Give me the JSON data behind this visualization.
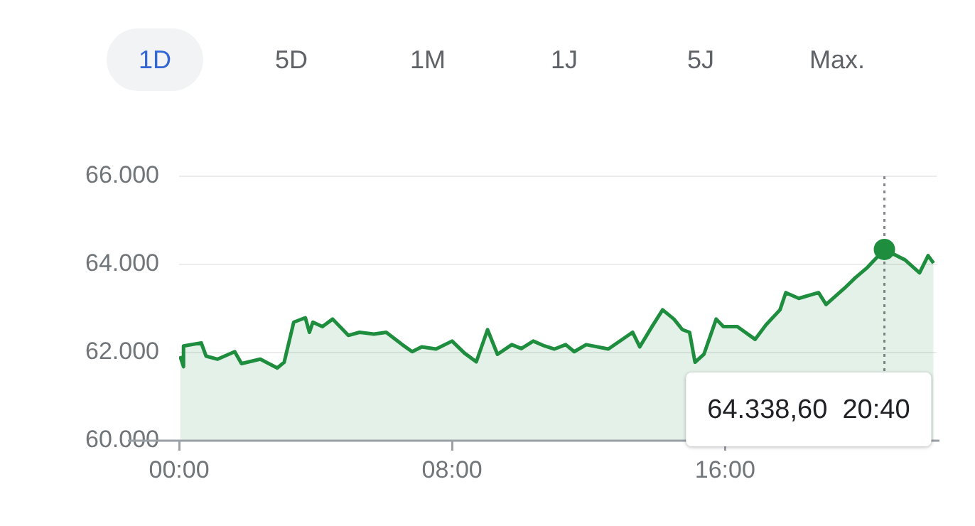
{
  "chart_data": {
    "type": "area",
    "x": [
      0.03,
      0.13,
      0.13,
      0.65,
      0.79,
      1.13,
      1.63,
      1.83,
      2.38,
      2.88,
      3.08,
      3.36,
      3.7,
      3.82,
      3.92,
      4.2,
      4.5,
      4.96,
      5.29,
      5.71,
      6.07,
      6.54,
      6.83,
      7.11,
      7.53,
      8.0,
      8.36,
      8.71,
      9.04,
      9.33,
      9.75,
      10.03,
      10.38,
      10.71,
      11.0,
      11.33,
      11.58,
      11.93,
      12.58,
      13.29,
      13.5,
      13.86,
      14.17,
      14.5,
      14.75,
      14.96,
      15.12,
      15.38,
      15.74,
      15.95,
      16.36,
      16.88,
      17.2,
      17.61,
      17.78,
      18.16,
      18.74,
      18.96,
      19.5,
      19.82,
      20.17,
      20.67,
      21.28,
      21.7,
      21.95,
      22.11
    ],
    "series": [
      {
        "color": "#1e8e3e",
        "values": [
          61920,
          61680,
          62150,
          62220,
          61920,
          61850,
          62020,
          61750,
          61850,
          61650,
          61780,
          62690,
          62790,
          62460,
          62690,
          62590,
          62760,
          62390,
          62460,
          62420,
          62460,
          62180,
          62020,
          62130,
          62080,
          62260,
          61990,
          61790,
          62520,
          61960,
          62180,
          62090,
          62260,
          62150,
          62080,
          62180,
          62020,
          62180,
          62080,
          62460,
          62130,
          62590,
          62970,
          62760,
          62520,
          62460,
          61780,
          61960,
          62760,
          62590,
          62590,
          62300,
          62630,
          62970,
          63360,
          63230,
          63360,
          63090,
          63460,
          63700,
          63930,
          64340,
          64100,
          63810,
          64200,
          64030
        ]
      },
      {
        "type": "scatter",
        "color": "#1e8e3e",
        "x": [
          20.67
        ],
        "values": [
          64340
        ]
      }
    ],
    "xlim": [
      0,
      22.2
    ],
    "xticks": [
      {
        "value": 0,
        "label": "00:00"
      },
      {
        "value": 8,
        "label": "08:00"
      },
      {
        "value": 16,
        "label": "16:00"
      }
    ],
    "ylim": [
      60000,
      66000
    ],
    "yticks": [
      {
        "value": 60000,
        "label": "60.000"
      },
      {
        "value": 62000,
        "label": "62.000"
      },
      {
        "value": 64000,
        "label": "64.000"
      },
      {
        "value": 66000,
        "label": "66.000"
      }
    ],
    "grid": "y",
    "legend": false,
    "ref_lines": [
      {
        "axis": "x",
        "value": 20.67,
        "color": "#80868b",
        "line_style": "dotted"
      }
    ],
    "annotations": [
      "1D",
      "5D",
      "1M",
      "1J",
      "5J",
      "Max.",
      "64.338,60  20:40"
    ]
  }
}
